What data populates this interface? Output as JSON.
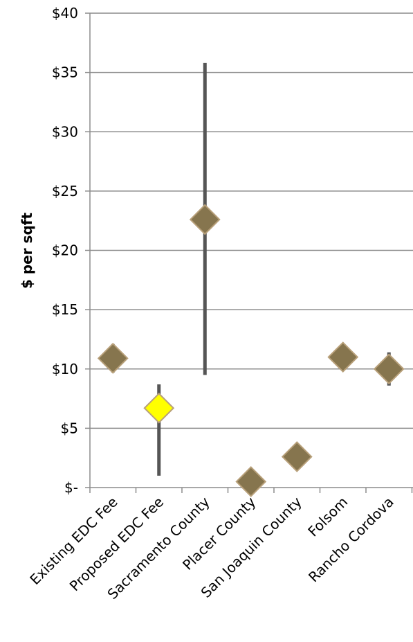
{
  "chart_data": {
    "type": "scatter",
    "title": "",
    "xlabel": "",
    "ylabel": "$ per sqft",
    "ylim": [
      0,
      40
    ],
    "y_ticks": [
      {
        "value": 0,
        "label": "$-"
      },
      {
        "value": 5,
        "label": "$5"
      },
      {
        "value": 10,
        "label": "$10"
      },
      {
        "value": 15,
        "label": "$15"
      },
      {
        "value": 20,
        "label": "$20"
      },
      {
        "value": 25,
        "label": "$25"
      },
      {
        "value": 30,
        "label": "$30"
      },
      {
        "value": 35,
        "label": "$35"
      },
      {
        "value": 40,
        "label": "$40"
      }
    ],
    "grid": true,
    "legend": "none",
    "categories": [
      "Existing EDC Fee",
      "Proposed EDC Fee",
      "Sacramento County",
      "Placer County",
      "San Joaquin County",
      "Folsom",
      "Rancho Cordova"
    ],
    "values": [
      10.9,
      6.7,
      22.6,
      0.5,
      2.6,
      11.0,
      10.0
    ],
    "range_low": [
      9.7,
      1.0,
      9.5,
      null,
      null,
      null,
      8.6
    ],
    "range_high": [
      12.1,
      8.7,
      35.8,
      null,
      null,
      null,
      11.4
    ],
    "point_colors": [
      "#86754e",
      "#ffff00",
      "#86754e",
      "#86754e",
      "#86754e",
      "#86754e",
      "#86754e"
    ],
    "range_color": "#555555"
  }
}
